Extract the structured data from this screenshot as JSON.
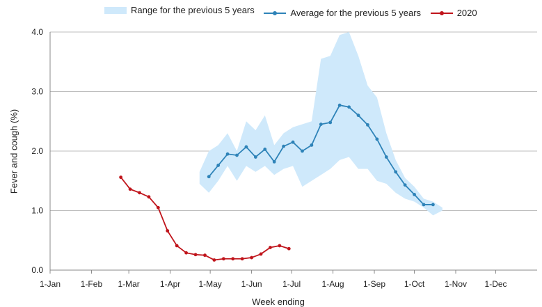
{
  "legend": {
    "band": "Range for the previous 5 years",
    "avg": "Average for the previous 5 years",
    "current": "2020"
  },
  "colors": {
    "band": "#cfe9fb",
    "avg": "#2e83b8",
    "current": "#c0141b",
    "axis": "#888888"
  },
  "chart_data": {
    "type": "line",
    "xlabel": "Week ending",
    "ylabel": "Fever and cough (%)",
    "ylim": [
      0,
      4
    ],
    "yticks": [
      "0.0",
      "1.0",
      "2.0",
      "3.0",
      "4.0"
    ],
    "xtick_labels": [
      "1-Jan",
      "1-Feb",
      "1-Mar",
      "1-Apr",
      "1-May",
      "1-Jun",
      "1-Jul",
      "1-Aug",
      "1-Sep",
      "1-Oct",
      "1-Nov",
      "1-Dec"
    ],
    "xtick_days": [
      1,
      32,
      60,
      91,
      121,
      152,
      182,
      213,
      244,
      274,
      305,
      335
    ],
    "xlim": [
      1,
      366
    ],
    "grid": "horizontal",
    "legend_position": "top",
    "series": [
      {
        "name": "Range for the previous 5 years",
        "kind": "band",
        "x": [
          113,
          120,
          127,
          134,
          141,
          148,
          155,
          162,
          169,
          176,
          183,
          190,
          197,
          204,
          211,
          218,
          225,
          232,
          239,
          246,
          253,
          260,
          267,
          274,
          281,
          288,
          295
        ],
        "upper": [
          1.65,
          2.0,
          2.1,
          2.3,
          2.0,
          2.5,
          2.35,
          2.6,
          2.1,
          2.3,
          2.4,
          2.45,
          2.5,
          3.55,
          3.6,
          3.95,
          4.0,
          3.6,
          3.1,
          2.9,
          2.3,
          1.85,
          1.55,
          1.4,
          1.2,
          1.15,
          1.05
        ],
        "lower": [
          1.45,
          1.3,
          1.5,
          1.75,
          1.5,
          1.75,
          1.65,
          1.75,
          1.6,
          1.7,
          1.75,
          1.4,
          1.5,
          1.6,
          1.7,
          1.85,
          1.9,
          1.7,
          1.7,
          1.5,
          1.45,
          1.3,
          1.2,
          1.15,
          1.05,
          0.92,
          1.0
        ]
      },
      {
        "name": "Average for the previous 5 years",
        "kind": "line",
        "x": [
          120,
          127,
          134,
          141,
          148,
          155,
          162,
          169,
          176,
          183,
          190,
          197,
          204,
          211,
          218,
          225,
          232,
          239,
          246,
          253,
          260,
          267,
          274,
          281,
          288
        ],
        "y": [
          1.57,
          1.76,
          1.95,
          1.93,
          2.07,
          1.9,
          2.03,
          1.82,
          2.08,
          2.15,
          2.0,
          2.1,
          2.45,
          2.48,
          2.77,
          2.74,
          2.6,
          2.44,
          2.2,
          1.9,
          1.65,
          1.43,
          1.27,
          1.1,
          1.1
        ]
      },
      {
        "name": "2020",
        "kind": "line",
        "x": [
          54,
          61,
          68,
          75,
          82,
          89,
          96,
          103,
          110,
          117,
          124,
          131,
          138,
          145,
          152,
          159,
          166,
          173,
          180
        ],
        "y": [
          1.56,
          1.36,
          1.3,
          1.23,
          1.05,
          0.66,
          0.41,
          0.29,
          0.26,
          0.25,
          0.17,
          0.19,
          0.19,
          0.19,
          0.21,
          0.27,
          0.38,
          0.41,
          0.36
        ]
      }
    ]
  }
}
